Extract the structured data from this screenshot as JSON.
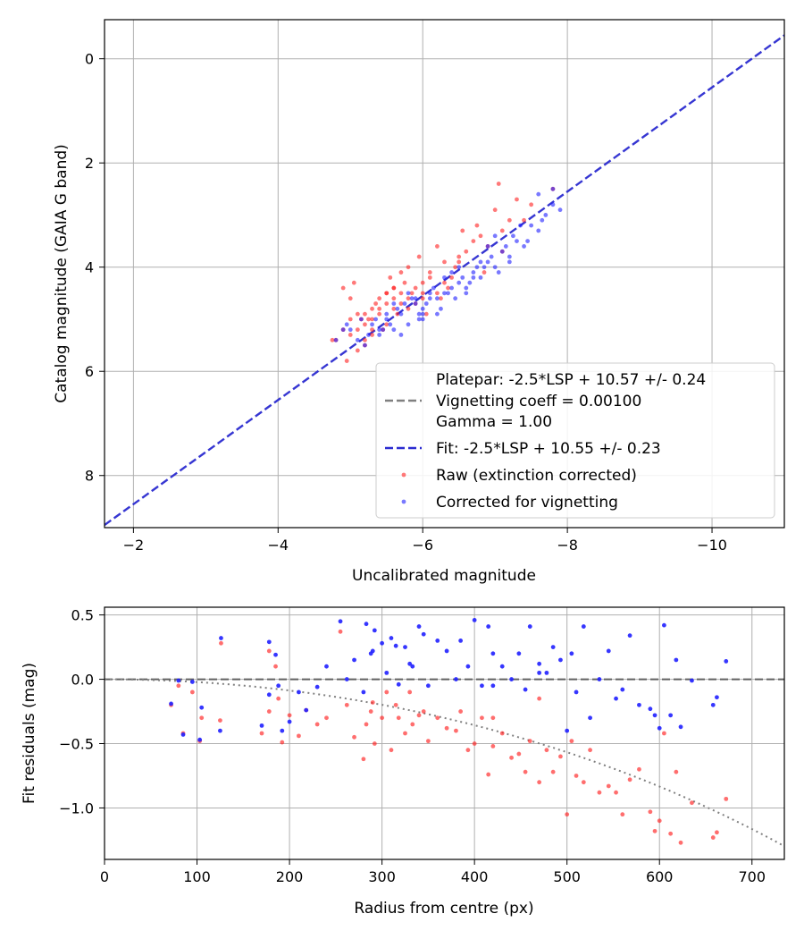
{
  "chart_data": [
    {
      "type": "scatter",
      "xlabel": "Uncalibrated magnitude",
      "ylabel": "Catalog magnitude (GAIA G band)",
      "xlim": [
        -1.6,
        -11.0
      ],
      "ylim": [
        9.0,
        -0.75
      ],
      "x_inverted": true,
      "y_inverted": true,
      "xticks": [
        -2,
        -4,
        -6,
        -8,
        -10
      ],
      "xtick_labels": [
        "−2",
        "−4",
        "−6",
        "−8",
        "−10"
      ],
      "yticks": [
        0,
        2,
        4,
        6,
        8
      ],
      "ytick_labels": [
        "0",
        "2",
        "4",
        "6",
        "8"
      ],
      "grid": true,
      "legend_position": "lower-right",
      "lines": [
        {
          "name": "Platepar: -2.5*LSP + 10.57 +/- 0.24",
          "style": "none",
          "color": "#ffffff"
        },
        {
          "name": "Vignetting coeff = 0.00100",
          "style": "dashed",
          "color": "#808080"
        },
        {
          "name": "Gamma = 1.00",
          "style": "none",
          "color": "#ffffff"
        },
        {
          "name": "Fit: -2.5*LSP + 10.55 +/- 0.23",
          "style": "dashed",
          "color": "#2b2bd0",
          "slope": 1.0,
          "intercept": 10.55
        }
      ],
      "series": [
        {
          "name": "Raw (extinction corrected)",
          "color": "#ff2020",
          "x": [
            -4.8,
            -4.9,
            -5.0,
            -5.1,
            -5.2,
            -5.3,
            -5.2,
            -5.1,
            -5.3,
            -5.4,
            -5.5,
            -5.4,
            -5.6,
            -5.7,
            -5.8,
            -5.6,
            -5.5,
            -5.9,
            -6.0,
            -6.1,
            -6.2,
            -6.0,
            -5.8,
            -5.7,
            -5.9,
            -6.3,
            -6.4,
            -6.2,
            -6.5,
            -6.6,
            -6.7,
            -6.9,
            -7.0,
            -7.1,
            -7.2,
            -7.5,
            -7.8,
            -5.0,
            -5.2,
            -5.3,
            -5.4,
            -5.6,
            -5.7,
            -5.5,
            -5.2,
            -5.1,
            -5.0,
            -4.9,
            -5.3,
            -5.6,
            -5.8,
            -6.0,
            -6.1,
            -6.3,
            -6.5,
            -6.8,
            -7.3,
            -4.95,
            -5.15,
            -5.35,
            -5.45,
            -5.65,
            -5.75,
            -5.85,
            -6.05,
            -6.25,
            -6.45,
            -6.55,
            -6.85,
            -7.1,
            -7.4,
            -5.05,
            -5.25,
            -5.5,
            -5.95,
            -6.35,
            -6.75,
            -7.05,
            -4.75,
            -5.55
          ],
          "y": [
            5.4,
            5.2,
            5.0,
            4.9,
            5.1,
            4.8,
            5.4,
            5.6,
            5.2,
            4.9,
            4.7,
            4.6,
            4.8,
            4.5,
            4.6,
            4.4,
            4.5,
            4.7,
            4.3,
            4.2,
            4.5,
            4.6,
            4.0,
            4.1,
            4.4,
            3.9,
            4.2,
            3.6,
            3.8,
            3.7,
            3.5,
            3.6,
            2.9,
            3.3,
            3.1,
            2.8,
            2.5,
            5.3,
            4.9,
            5.0,
            4.8,
            4.6,
            4.7,
            5.1,
            5.5,
            5.2,
            4.6,
            4.4,
            5.3,
            4.4,
            4.8,
            4.5,
            4.1,
            4.3,
            3.9,
            3.4,
            2.7,
            5.8,
            5.0,
            4.7,
            5.2,
            4.9,
            4.3,
            4.5,
            4.9,
            4.6,
            4.0,
            3.3,
            4.1,
            3.7,
            3.1,
            4.3,
            5.0,
            4.5,
            3.8,
            4.4,
            3.2,
            2.4,
            5.4,
            4.2
          ]
        },
        {
          "name": "Corrected for vignetting",
          "color": "#2020ff",
          "x": [
            -4.8,
            -5.0,
            -5.2,
            -5.3,
            -5.4,
            -5.5,
            -5.6,
            -5.7,
            -5.8,
            -5.9,
            -6.0,
            -6.1,
            -6.2,
            -6.3,
            -6.4,
            -6.5,
            -6.6,
            -6.7,
            -6.8,
            -6.9,
            -7.0,
            -7.1,
            -7.2,
            -7.3,
            -7.4,
            -7.5,
            -7.6,
            -7.7,
            -7.8,
            -7.9,
            -5.1,
            -5.35,
            -5.55,
            -5.75,
            -5.95,
            -6.15,
            -6.35,
            -6.55,
            -6.75,
            -6.95,
            -7.15,
            -5.25,
            -5.45,
            -5.65,
            -5.85,
            -6.05,
            -6.25,
            -6.45,
            -6.65,
            -6.85,
            -7.05,
            -7.25,
            -7.45,
            -7.65,
            -4.9,
            -5.6,
            -6.0,
            -6.4,
            -6.8,
            -7.2,
            -5.15,
            -5.5,
            -5.8,
            -6.1,
            -6.5,
            -6.9,
            -7.6,
            -7.8,
            -5.7,
            -6.3,
            -4.95,
            -5.95,
            -6.6,
            -7.35,
            -5.4,
            -6.2,
            -6.7,
            -7.0,
            -5.9,
            -6.0
          ],
          "y": [
            5.4,
            5.2,
            5.5,
            5.1,
            5.3,
            5.0,
            5.2,
            4.9,
            5.1,
            4.7,
            4.8,
            4.6,
            4.9,
            4.5,
            4.4,
            4.3,
            4.5,
            4.1,
            4.2,
            3.9,
            4.0,
            3.7,
            3.8,
            3.5,
            3.6,
            3.2,
            3.3,
            3.0,
            2.8,
            2.9,
            5.4,
            5.0,
            5.1,
            4.7,
            4.9,
            4.4,
            4.5,
            4.2,
            4.0,
            3.8,
            3.6,
            5.3,
            5.2,
            4.8,
            4.6,
            4.7,
            4.8,
            4.6,
            4.3,
            4.0,
            4.1,
            3.4,
            3.5,
            3.1,
            5.2,
            4.7,
            5.0,
            4.1,
            3.9,
            3.9,
            5.0,
            4.9,
            4.5,
            4.5,
            4.0,
            3.6,
            2.6,
            2.5,
            5.3,
            4.2,
            5.1,
            5.0,
            4.4,
            3.2,
            5.2,
            4.6,
            4.2,
            3.4,
            4.6,
            4.9
          ]
        }
      ]
    },
    {
      "type": "scatter",
      "xlabel": "Radius from centre (px)",
      "ylabel": "Fit residuals (mag)",
      "xlim": [
        0,
        735
      ],
      "ylim": [
        -1.4,
        0.56
      ],
      "xticks": [
        0,
        100,
        200,
        300,
        400,
        500,
        600,
        700
      ],
      "xtick_labels": [
        "0",
        "100",
        "200",
        "300",
        "400",
        "500",
        "600",
        "700"
      ],
      "yticks": [
        0.5,
        0.0,
        -0.5,
        -1.0
      ],
      "ytick_labels": [
        "0.5",
        "0.0",
        "−0.5",
        "−1.0"
      ],
      "grid": true,
      "reference_line": {
        "y": 0.0,
        "style": "dashed",
        "color": "#555555"
      },
      "model_curve": {
        "style": "dotted",
        "color": "#808080",
        "coefficient": 0.001
      },
      "series": [
        {
          "name": "Raw (extinction corrected)",
          "color": "#ff2020",
          "x": [
            72,
            80,
            85,
            95,
            103,
            105,
            125,
            126,
            170,
            178,
            185,
            188,
            192,
            200,
            210,
            218,
            230,
            240,
            255,
            262,
            270,
            280,
            283,
            288,
            292,
            300,
            305,
            310,
            318,
            325,
            333,
            340,
            345,
            350,
            360,
            370,
            380,
            385,
            393,
            400,
            408,
            415,
            420,
            430,
            440,
            448,
            455,
            460,
            470,
            478,
            485,
            493,
            500,
            505,
            510,
            518,
            525,
            535,
            545,
            553,
            560,
            568,
            578,
            590,
            595,
            600,
            605,
            612,
            618,
            623,
            635,
            658,
            662,
            672,
            178,
            290,
            315,
            330,
            420,
            470
          ],
          "y": [
            -0.2,
            -0.05,
            -0.42,
            -0.1,
            -0.48,
            -0.3,
            -0.32,
            0.28,
            -0.42,
            0.22,
            0.1,
            -0.15,
            -0.49,
            -0.28,
            -0.44,
            -0.24,
            -0.35,
            -0.3,
            0.37,
            -0.2,
            -0.45,
            -0.62,
            -0.35,
            -0.25,
            -0.5,
            -0.3,
            -0.1,
            -0.55,
            -0.3,
            -0.42,
            -0.35,
            -0.28,
            -0.25,
            -0.48,
            -0.3,
            -0.38,
            -0.4,
            -0.25,
            -0.55,
            -0.5,
            -0.3,
            -0.74,
            -0.52,
            -0.42,
            -0.61,
            -0.58,
            -0.72,
            -0.48,
            -0.8,
            -0.55,
            -0.72,
            -0.6,
            -1.05,
            -0.48,
            -0.75,
            -0.8,
            -0.55,
            -0.88,
            -0.83,
            -0.88,
            -1.05,
            -0.78,
            -0.7,
            -1.03,
            -1.18,
            -1.1,
            -0.42,
            -1.2,
            -0.72,
            -1.27,
            -0.96,
            -1.23,
            -1.19,
            -0.93,
            -0.25,
            -0.18,
            -0.2,
            -0.1,
            -0.3,
            -0.15
          ]
        },
        {
          "name": "Corrected for vignetting",
          "color": "#2020ff",
          "x": [
            72,
            80,
            85,
            95,
            103,
            105,
            125,
            126,
            170,
            178,
            185,
            188,
            192,
            200,
            210,
            218,
            230,
            240,
            255,
            262,
            270,
            280,
            283,
            288,
            292,
            300,
            305,
            310,
            318,
            325,
            333,
            340,
            345,
            350,
            360,
            370,
            380,
            385,
            393,
            400,
            408,
            415,
            420,
            430,
            440,
            448,
            455,
            460,
            470,
            478,
            485,
            493,
            500,
            505,
            510,
            518,
            525,
            535,
            545,
            553,
            560,
            568,
            578,
            590,
            595,
            600,
            605,
            612,
            618,
            623,
            635,
            658,
            662,
            672,
            178,
            290,
            315,
            330,
            420,
            470
          ],
          "y": [
            -0.19,
            -0.01,
            -0.43,
            -0.02,
            -0.47,
            -0.22,
            -0.4,
            0.32,
            -0.36,
            0.29,
            0.19,
            -0.05,
            -0.4,
            -0.33,
            -0.1,
            -0.24,
            -0.06,
            0.1,
            0.45,
            0.0,
            0.15,
            -0.1,
            0.43,
            0.2,
            0.38,
            0.28,
            0.05,
            0.32,
            -0.04,
            0.25,
            0.1,
            0.41,
            0.35,
            -0.05,
            0.3,
            0.22,
            0.0,
            0.3,
            0.1,
            0.46,
            -0.05,
            0.41,
            -0.05,
            0.1,
            0.0,
            0.2,
            -0.08,
            0.41,
            0.05,
            0.05,
            0.25,
            0.15,
            -0.4,
            0.2,
            -0.1,
            0.41,
            -0.3,
            0.0,
            0.22,
            -0.15,
            -0.08,
            0.34,
            -0.2,
            -0.23,
            -0.28,
            -0.38,
            0.42,
            -0.28,
            0.15,
            -0.37,
            -0.01,
            -0.2,
            -0.14,
            0.14,
            -0.12,
            0.22,
            0.26,
            0.12,
            0.2,
            0.12
          ]
        }
      ]
    }
  ]
}
